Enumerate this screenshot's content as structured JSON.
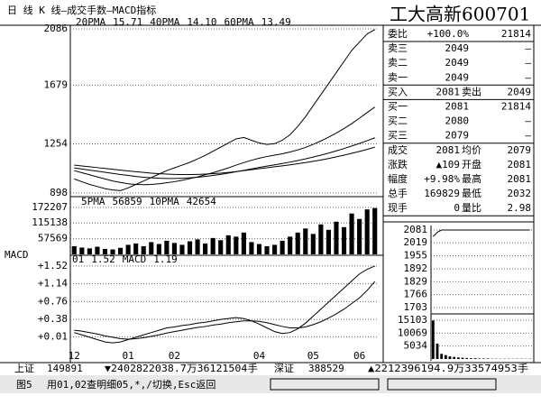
{
  "header": {
    "title": "日 线 K 线—成交手数—MACD指标",
    "stock": "工大高新600701"
  },
  "quote_table": {
    "rows": [
      [
        "委比",
        "+100.0%",
        "21814"
      ],
      [
        "卖三",
        "2049",
        "—"
      ],
      [
        "卖二",
        "2049",
        "—"
      ],
      [
        "卖一",
        "2049",
        "—"
      ],
      [
        "买入",
        "2081",
        "卖出",
        "2049"
      ],
      [
        "买一",
        "2081",
        "21814"
      ],
      [
        "买二",
        "2080",
        "—"
      ],
      [
        "买三",
        "2079",
        "—"
      ],
      [
        "成交",
        "2081",
        "均价",
        "2079"
      ],
      [
        "涨跌",
        "▲109",
        "开盘",
        "2081"
      ],
      [
        "幅度",
        "+9.98%",
        "最高",
        "2081"
      ],
      [
        "总手",
        "169829",
        "最低",
        "2032"
      ],
      [
        "现手",
        "0",
        "量比",
        "2.98"
      ]
    ]
  },
  "status_bar": {
    "items": [
      "上证",
      "149891",
      "▼2402822038.7万36121504手",
      "深证",
      "388529",
      "▲2212396194.9万33574953手"
    ]
  },
  "footer": {
    "items": [
      "图5",
      "用01,02查明细05,*,/切换,Esc返回"
    ]
  },
  "chart_data": [
    {
      "type": "line",
      "ylim": [
        898,
        2086
      ],
      "yticks": [
        2086,
        1679,
        1254,
        898
      ],
      "grid": true,
      "categories": [
        "12",
        null,
        null,
        null,
        null,
        null,
        null,
        "01",
        null,
        null,
        null,
        null,
        null,
        "02",
        null,
        null,
        null,
        null,
        null,
        null,
        null,
        null,
        null,
        null,
        "04",
        null,
        null,
        null,
        null,
        null,
        null,
        "05",
        null,
        null,
        null,
        null,
        null,
        "06",
        null,
        null
      ],
      "series": [
        {
          "color": "#000000",
          "values": [
            1000,
            980,
            960,
            945,
            930,
            920,
            915,
            935,
            960,
            985,
            1010,
            1035,
            1060,
            1080,
            1100,
            1120,
            1145,
            1170,
            1200,
            1230,
            1260,
            1290,
            1300,
            1280,
            1260,
            1250,
            1255,
            1280,
            1320,
            1380,
            1450,
            1530,
            1610,
            1690,
            1770,
            1850,
            1930,
            1990,
            2049,
            2081
          ]
        },
        {
          "name": "20PMA",
          "legend_value": "15.71",
          "color": "#000000",
          "values": [
            1060,
            1045,
            1030,
            1015,
            1000,
            985,
            975,
            965,
            960,
            958,
            960,
            965,
            972,
            980,
            990,
            1002,
            1015,
            1030,
            1045,
            1062,
            1080,
            1100,
            1118,
            1135,
            1150,
            1162,
            1172,
            1182,
            1195,
            1210,
            1228,
            1250,
            1275,
            1302,
            1332,
            1365,
            1400,
            1440,
            1480,
            1520
          ]
        },
        {
          "name": "40PMA",
          "legend_value": "14.10",
          "color": "#000000",
          "values": [
            1080,
            1072,
            1064,
            1056,
            1048,
            1040,
            1032,
            1025,
            1018,
            1012,
            1008,
            1005,
            1003,
            1003,
            1005,
            1008,
            1012,
            1018,
            1025,
            1033,
            1042,
            1052,
            1062,
            1073,
            1083,
            1093,
            1102,
            1112,
            1122,
            1133,
            1145,
            1158,
            1172,
            1187,
            1203,
            1220,
            1238,
            1257,
            1277,
            1298
          ]
        },
        {
          "name": "60PMA",
          "legend_value": "13.49",
          "color": "#000000",
          "values": [
            1100,
            1094,
            1088,
            1082,
            1076,
            1070,
            1064,
            1058,
            1052,
            1047,
            1042,
            1038,
            1035,
            1033,
            1032,
            1032,
            1033,
            1035,
            1038,
            1042,
            1047,
            1053,
            1060,
            1067,
            1074,
            1081,
            1088,
            1095,
            1102,
            1110,
            1118,
            1127,
            1137,
            1148,
            1160,
            1172,
            1185,
            1199,
            1214,
            1230
          ]
        }
      ]
    },
    {
      "type": "bar",
      "ylim": [
        0,
        172207
      ],
      "yticks": [
        172207,
        115138,
        57569
      ],
      "grid": true,
      "legend_text": [
        "5PMA",
        "56859",
        "10PMA",
        "42654"
      ],
      "series": [
        {
          "color": "#000000",
          "values": [
            30000,
            25000,
            22000,
            28000,
            20000,
            18000,
            24000,
            35000,
            40000,
            30000,
            45000,
            38000,
            50000,
            42000,
            35000,
            48000,
            55000,
            40000,
            60000,
            52000,
            70000,
            65000,
            80000,
            45000,
            38000,
            30000,
            35000,
            50000,
            65000,
            80000,
            95000,
            75000,
            110000,
            90000,
            120000,
            100000,
            150000,
            130000,
            165000,
            169829
          ]
        }
      ]
    },
    {
      "type": "line",
      "title": "MACD",
      "ylim": [
        -0.31,
        1.73
      ],
      "yticks": [
        {
          "value": 1.52,
          "label": "+1.52"
        },
        {
          "value": 1.14,
          "label": "+1.14"
        },
        {
          "value": 0.76,
          "label": "+0.76"
        },
        {
          "value": 0.38,
          "label": "+0.38"
        },
        {
          "value": 0.01,
          "label": "+0.01"
        }
      ],
      "grid": true,
      "legend_text": [
        "01",
        "1.52",
        "MACD",
        "1.19"
      ],
      "series": [
        {
          "color": "#000000",
          "values": [
            0.1,
            0.05,
            0.0,
            -0.05,
            -0.1,
            -0.12,
            -0.1,
            -0.05,
            0.0,
            0.05,
            0.1,
            0.15,
            0.2,
            0.22,
            0.25,
            0.27,
            0.3,
            0.32,
            0.35,
            0.38,
            0.4,
            0.42,
            0.4,
            0.35,
            0.28,
            0.2,
            0.12,
            0.08,
            0.1,
            0.18,
            0.3,
            0.45,
            0.6,
            0.75,
            0.9,
            1.05,
            1.2,
            1.35,
            1.45,
            1.52
          ]
        },
        {
          "color": "#000000",
          "values": [
            0.15,
            0.13,
            0.1,
            0.07,
            0.03,
            0.0,
            -0.03,
            -0.04,
            -0.03,
            -0.01,
            0.02,
            0.05,
            0.09,
            0.12,
            0.15,
            0.18,
            0.21,
            0.23,
            0.26,
            0.28,
            0.31,
            0.33,
            0.35,
            0.35,
            0.34,
            0.31,
            0.27,
            0.23,
            0.2,
            0.2,
            0.22,
            0.27,
            0.33,
            0.41,
            0.5,
            0.6,
            0.72,
            0.84,
            1.0,
            1.19
          ]
        }
      ]
    },
    {
      "type": "line",
      "ylim": [
        1703,
        2081
      ],
      "yticks": [
        2081,
        2019,
        1955,
        1892,
        1829,
        1766,
        1703
      ],
      "grid": true,
      "series": [
        {
          "color": "#000000",
          "values": [
            2049,
            2070,
            2081,
            2081,
            2081,
            2081,
            2081,
            2081,
            2081,
            2081,
            2081,
            2081,
            2081,
            2081,
            2081,
            2081,
            2081,
            2081,
            2081,
            2081,
            2081,
            2081,
            2081,
            2081
          ]
        }
      ]
    },
    {
      "type": "bar",
      "ylim": [
        0,
        15103
      ],
      "yticks": [
        15103,
        10069,
        5034
      ],
      "grid": true,
      "series": [
        {
          "color": "#000000",
          "values": [
            15000,
            6000,
            2000,
            1500,
            1000,
            800,
            600,
            500,
            400,
            300,
            300,
            200,
            200,
            200,
            100,
            100,
            100,
            100,
            100,
            100,
            100,
            100,
            100,
            100
          ]
        }
      ]
    }
  ]
}
